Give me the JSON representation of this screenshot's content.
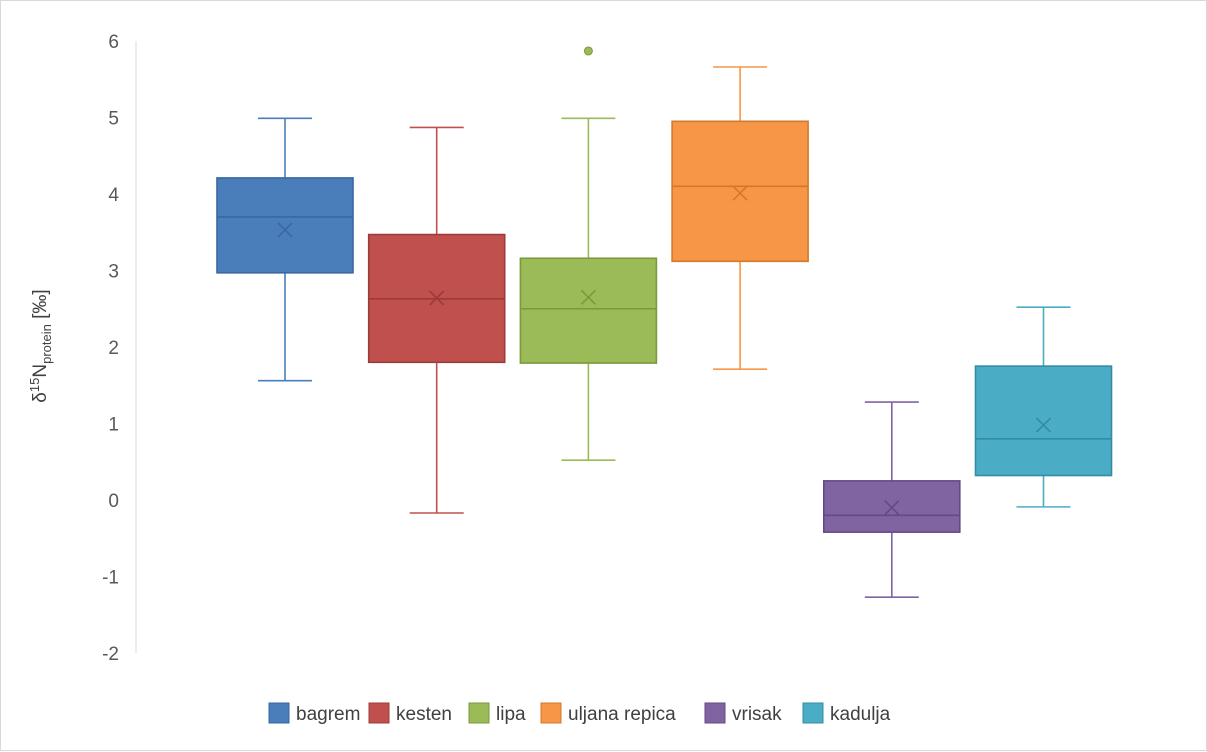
{
  "chart_data": {
    "type": "box",
    "title": "",
    "xlabel": "",
    "ylabel": {
      "prefix": "δ",
      "superscript": "15",
      "base": "N",
      "subscript": "protein",
      "unit": "[‰]"
    },
    "ylim": [
      -2,
      6
    ],
    "yticks": [
      "6",
      "5",
      "4",
      "3",
      "2",
      "1",
      "0",
      "-1",
      "-2"
    ],
    "ytick_values": [
      6,
      5,
      4,
      3,
      2,
      1,
      0,
      -1,
      -2
    ],
    "grid": false,
    "legend_position": "bottom",
    "series": [
      {
        "name": "bagrem",
        "color": "#4a7ebb",
        "stroke": "#3a67a0",
        "whisker_min": 1.56,
        "q1": 2.97,
        "median": 3.7,
        "q3": 4.21,
        "whisker_max": 4.99,
        "mean": 3.53,
        "outliers": []
      },
      {
        "name": "kesten",
        "color": "#c0504d",
        "stroke": "#9c3b39",
        "whisker_min": -0.17,
        "q1": 1.8,
        "median": 2.63,
        "q3": 3.47,
        "whisker_max": 4.87,
        "mean": 2.64,
        "outliers": []
      },
      {
        "name": "lipa",
        "color": "#9bbb59",
        "stroke": "#7a9a3c",
        "whisker_min": 0.52,
        "q1": 1.79,
        "median": 2.5,
        "q3": 3.16,
        "whisker_max": 4.99,
        "mean": 2.65,
        "outliers": [
          5.87
        ]
      },
      {
        "name": "uljana repica",
        "color": "#f79646",
        "stroke": "#d4782b",
        "whisker_min": 1.71,
        "q1": 3.12,
        "median": 4.1,
        "q3": 4.95,
        "whisker_max": 5.66,
        "mean": 4.01,
        "outliers": []
      },
      {
        "name": "vrisak",
        "color": "#8064a2",
        "stroke": "#634a84",
        "whisker_min": -1.27,
        "q1": -0.42,
        "median": -0.2,
        "q3": 0.25,
        "whisker_max": 1.28,
        "mean": -0.1,
        "outliers": []
      },
      {
        "name": "kadulja",
        "color": "#4bacc6",
        "stroke": "#338ca6",
        "whisker_min": -0.09,
        "q1": 0.32,
        "median": 0.8,
        "q3": 1.75,
        "whisker_max": 2.52,
        "mean": 0.98,
        "outliers": []
      }
    ]
  }
}
